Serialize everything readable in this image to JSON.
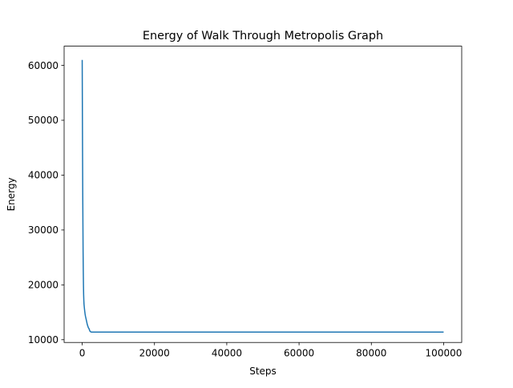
{
  "chart_data": {
    "type": "line",
    "title": "Energy of Walk Through Metropolis Graph",
    "xlabel": "Steps",
    "ylabel": "Energy",
    "xlim": [
      -5000,
      105000
    ],
    "ylim": [
      9500,
      63500
    ],
    "xticks": [
      0,
      20000,
      40000,
      60000,
      80000,
      100000
    ],
    "xtick_labels": [
      "0",
      "20000",
      "40000",
      "60000",
      "80000",
      "100000"
    ],
    "yticks": [
      10000,
      20000,
      30000,
      40000,
      50000,
      60000
    ],
    "ytick_labels": [
      "10000",
      "20000",
      "30000",
      "40000",
      "50000",
      "60000"
    ],
    "grid": false,
    "series": [
      {
        "color": "#1f77b4",
        "x": [
          0,
          50,
          100,
          150,
          200,
          250,
          300,
          350,
          400,
          450,
          500,
          600,
          700,
          800,
          900,
          1000,
          1100,
          1200,
          1300,
          1400,
          1500,
          1600,
          1700,
          1800,
          1900,
          2000,
          2200,
          2500,
          3000,
          5000,
          10000,
          20000,
          40000,
          60000,
          80000,
          100000
        ],
        "y": [
          61000,
          52000,
          44000,
          37000,
          31000,
          26000,
          22500,
          20000,
          18200,
          17200,
          16500,
          15800,
          15200,
          14700,
          14300,
          14000,
          13700,
          13400,
          13100,
          12800,
          12600,
          12400,
          12200,
          12100,
          12000,
          11800,
          11500,
          11400,
          11400,
          11400,
          11400,
          11400,
          11400,
          11400,
          11400,
          11400
        ]
      }
    ]
  }
}
